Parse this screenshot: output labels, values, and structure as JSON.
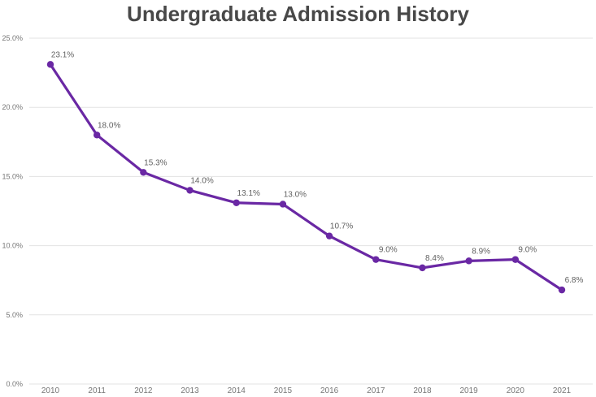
{
  "chart_data": {
    "type": "line",
    "title": "Undergraduate Admission History",
    "categories": [
      "2010",
      "2011",
      "2012",
      "2013",
      "2014",
      "2015",
      "2016",
      "2017",
      "2018",
      "2019",
      "2020",
      "2021"
    ],
    "values": [
      23.1,
      18.0,
      15.3,
      14.0,
      13.1,
      13.0,
      10.7,
      9.0,
      8.4,
      8.9,
      9.0,
      6.8
    ],
    "point_labels": [
      "23.1%",
      "18.0%",
      "15.3%",
      "14.0%",
      "13.1%",
      "13.0%",
      "10.7%",
      "9.0%",
      "8.4%",
      "8.9%",
      "9.0%",
      "6.8%"
    ],
    "y_ticks": [
      "0.0%",
      "5.0%",
      "10.0%",
      "15.0%",
      "20.0%",
      "25.0%"
    ],
    "ylim": [
      0,
      25
    ],
    "xlabel": "",
    "ylabel": "",
    "grid": "horizontal",
    "legend": "none",
    "colors": {
      "line": "#6A28A4",
      "marker": "#6A28A4",
      "title": "#484848",
      "point_label": "#606060",
      "axis_tick": "#767676",
      "gridline": "#e3e3e3",
      "background": "#ffffff"
    }
  }
}
